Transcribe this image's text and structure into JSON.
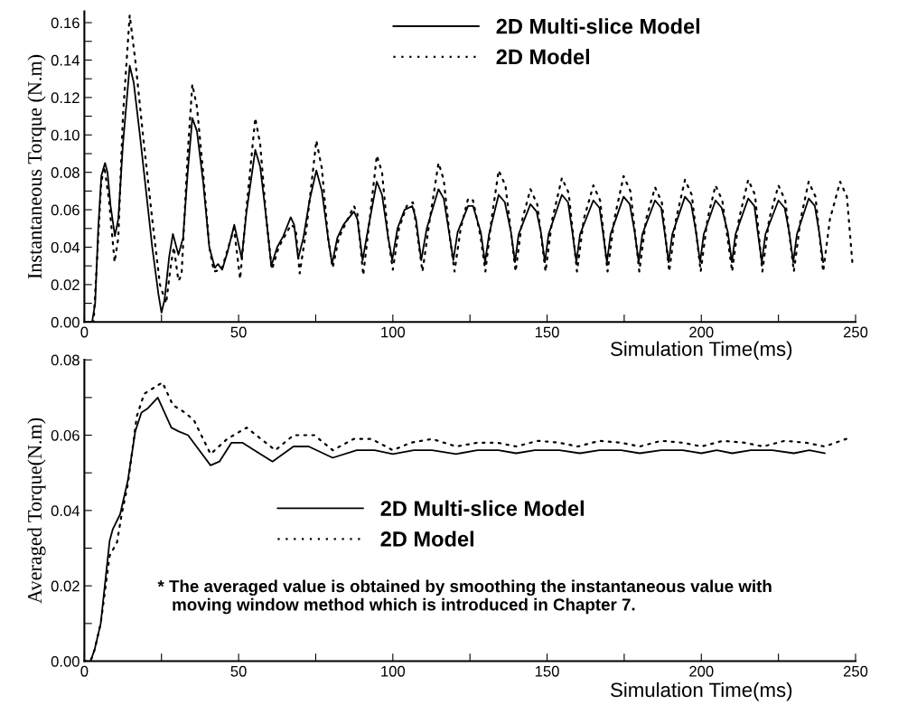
{
  "chart_data": [
    {
      "type": "line",
      "ylabel": "Instantaneous Torque (N.m)",
      "xlabel": "Simulation Time(ms)",
      "xlim": [
        0,
        250
      ],
      "ylim": [
        0,
        0.166
      ],
      "xticks": [
        0,
        {
          "value": 25,
          "label": null
        },
        50,
        {
          "value": 75,
          "label": null
        },
        100,
        {
          "value": 125,
          "label": null
        },
        150,
        {
          "value": 175,
          "label": null
        },
        200,
        {
          "value": 225,
          "label": null
        },
        250
      ],
      "yticks": [
        {
          "value": 0,
          "label": "0.00"
        },
        {
          "value": 0.01,
          "label": null
        },
        {
          "value": 0.02,
          "label": "0.02"
        },
        {
          "value": 0.03,
          "label": null
        },
        {
          "value": 0.04,
          "label": "0.04"
        },
        {
          "value": 0.05,
          "label": null
        },
        {
          "value": 0.06,
          "label": "0.06"
        },
        {
          "value": 0.07,
          "label": null
        },
        {
          "value": 0.08,
          "label": "0.08"
        },
        {
          "value": 0.09,
          "label": null
        },
        {
          "value": 0.1,
          "label": "0.10"
        },
        {
          "value": 0.11,
          "label": null
        },
        {
          "value": 0.12,
          "label": "0.12"
        },
        {
          "value": 0.13,
          "label": null
        },
        {
          "value": 0.14,
          "label": "0.14"
        },
        {
          "value": 0.15,
          "label": null
        },
        {
          "value": 0.16,
          "label": "0.16"
        }
      ],
      "legend": "top",
      "series": [
        {
          "name": "2D Multi-slice Model",
          "color": "#000000",
          "line_style": "solid",
          "x": [
            0,
            2.5,
            3.5,
            4.5,
            5.5,
            6.7,
            7.5,
            8.5,
            9.9,
            11,
            12.5,
            14.7,
            16,
            18,
            20,
            22,
            24,
            25,
            26,
            27.5,
            28.7,
            30.5,
            32,
            33.5,
            35,
            36.5,
            38.5,
            40.5,
            42.3,
            43.3,
            44.7,
            46.5,
            48.6,
            51,
            52.5,
            55.4,
            57,
            59,
            60.6,
            62.5,
            64.5,
            66.9,
            68,
            69.3,
            71,
            73,
            75.2,
            77,
            79,
            80.3,
            82,
            84,
            87.4,
            88.5,
            90.2,
            92,
            94.8,
            96.5,
            98.5,
            99.8,
            101.5,
            103.8,
            106.3,
            107.5,
            109.2,
            111,
            114.8,
            116.5,
            118.5,
            119.6,
            121,
            124.4,
            126,
            128.5,
            129.9,
            131.2,
            134.3,
            136.3,
            138.3,
            139.6,
            140.8,
            144.6,
            146.6,
            148,
            149.3,
            150.5,
            154.8,
            156.8,
            158.2,
            159.5,
            160.7,
            165,
            167,
            168.1,
            169.4,
            170.6,
            174.8,
            176.8,
            178.4,
            179.7,
            180.9,
            185,
            187,
            188.1,
            189.4,
            190.6,
            194.7,
            196.7,
            198.3,
            199.6,
            200.8,
            204.6,
            206.6,
            208.6,
            209.9,
            211.1,
            215.2,
            217.2,
            218.3,
            219.6,
            220.8,
            225,
            227,
            228.5,
            229.8,
            231,
            234.8,
            236.8,
            238.2,
            239.5
          ],
          "values": [
            0,
            0,
            0.01,
            0.05,
            0.078,
            0.085,
            0.08,
            0.062,
            0.046,
            0.055,
            0.095,
            0.137,
            0.128,
            0.1,
            0.07,
            0.04,
            0.015,
            0.005,
            0.012,
            0.035,
            0.047,
            0.036,
            0.045,
            0.08,
            0.109,
            0.102,
            0.075,
            0.04,
            0.029,
            0.031,
            0.028,
            0.038,
            0.052,
            0.034,
            0.058,
            0.092,
            0.083,
            0.055,
            0.03,
            0.04,
            0.046,
            0.056,
            0.052,
            0.034,
            0.045,
            0.065,
            0.081,
            0.07,
            0.045,
            0.031,
            0.045,
            0.052,
            0.059,
            0.055,
            0.033,
            0.05,
            0.075,
            0.068,
            0.045,
            0.033,
            0.05,
            0.06,
            0.062,
            0.055,
            0.033,
            0.05,
            0.071,
            0.066,
            0.045,
            0.033,
            0.048,
            0.062,
            0.062,
            0.048,
            0.032,
            0.047,
            0.068,
            0.064,
            0.048,
            0.032,
            0.047,
            0.063,
            0.059,
            0.048,
            0.032,
            0.047,
            0.068,
            0.064,
            0.048,
            0.032,
            0.047,
            0.065,
            0.061,
            0.048,
            0.032,
            0.047,
            0.067,
            0.063,
            0.048,
            0.032,
            0.047,
            0.065,
            0.061,
            0.048,
            0.032,
            0.047,
            0.067,
            0.063,
            0.048,
            0.032,
            0.047,
            0.065,
            0.061,
            0.048,
            0.032,
            0.047,
            0.066,
            0.062,
            0.048,
            0.032,
            0.047,
            0.065,
            0.061,
            0.048,
            0.032,
            0.047,
            0.066,
            0.062,
            0.048,
            0.032
          ]
        },
        {
          "name": "2D Model",
          "color": "#000000",
          "line_style": "dotted",
          "x": [
            0,
            3,
            4,
            5.5,
            6.5,
            8,
            9.8,
            11,
            12.5,
            14.7,
            16.5,
            19,
            22,
            24.5,
            26.5,
            28,
            29,
            30.5,
            31.5,
            33.5,
            35,
            36.5,
            38.5,
            40.5,
            42,
            44.5,
            48.5,
            50.5,
            52.5,
            55.4,
            57,
            59,
            60.8,
            63,
            67,
            68.5,
            69.8,
            72,
            75.2,
            77,
            79,
            80.5,
            82.5,
            87.4,
            88.5,
            90.4,
            92.5,
            94.8,
            96.5,
            98.5,
            100,
            102,
            104.5,
            106.5,
            109.6,
            112,
            114.8,
            116.5,
            118.5,
            120,
            122,
            124.4,
            126,
            128.5,
            130,
            132,
            134.3,
            136.5,
            139.8,
            142,
            144.6,
            146.8,
            149.5,
            151.7,
            154.8,
            157,
            159.7,
            161.9,
            165,
            167.2,
            169.6,
            171.8,
            174.8,
            177,
            179.9,
            182.1,
            185,
            187.2,
            189.6,
            191.8,
            194.7,
            196.9,
            199.8,
            202,
            204.6,
            206.8,
            210,
            212.2,
            215.2,
            217.4,
            219.8,
            222,
            225,
            227.2,
            230,
            232.2,
            234.8,
            237,
            239.5,
            241.7,
            245,
            247.2,
            249
          ],
          "values": [
            0,
            0,
            0.03,
            0.075,
            0.083,
            0.065,
            0.032,
            0.045,
            0.11,
            0.164,
            0.14,
            0.1,
            0.055,
            0.02,
            0.01,
            0.03,
            0.04,
            0.022,
            0.025,
            0.09,
            0.127,
            0.115,
            0.08,
            0.04,
            0.027,
            0.028,
            0.05,
            0.023,
            0.06,
            0.109,
            0.095,
            0.055,
            0.028,
            0.04,
            0.052,
            0.05,
            0.026,
            0.05,
            0.097,
            0.082,
            0.045,
            0.029,
            0.045,
            0.062,
            0.058,
            0.025,
            0.055,
            0.089,
            0.08,
            0.045,
            0.028,
            0.05,
            0.062,
            0.064,
            0.027,
            0.055,
            0.085,
            0.076,
            0.045,
            0.027,
            0.05,
            0.066,
            0.065,
            0.045,
            0.027,
            0.055,
            0.081,
            0.073,
            0.027,
            0.055,
            0.071,
            0.063,
            0.027,
            0.055,
            0.077,
            0.069,
            0.027,
            0.055,
            0.073,
            0.065,
            0.027,
            0.055,
            0.078,
            0.07,
            0.027,
            0.055,
            0.072,
            0.064,
            0.027,
            0.055,
            0.076,
            0.068,
            0.027,
            0.055,
            0.073,
            0.065,
            0.027,
            0.055,
            0.076,
            0.068,
            0.027,
            0.055,
            0.073,
            0.065,
            0.027,
            0.055,
            0.075,
            0.067,
            0.027,
            0.055,
            0.075,
            0.067,
            0.031
          ]
        }
      ]
    },
    {
      "type": "line",
      "ylabel": "Averaged Torque(N.m)",
      "xlabel": "Simulation Time(ms)",
      "xlim": [
        0,
        250
      ],
      "ylim": [
        0,
        0.08
      ],
      "xticks": [
        0,
        {
          "value": 25,
          "label": null
        },
        50,
        {
          "value": 75,
          "label": null
        },
        100,
        {
          "value": 125,
          "label": null
        },
        150,
        {
          "value": 175,
          "label": null
        },
        200,
        {
          "value": 225,
          "label": null
        },
        250
      ],
      "yticks": [
        {
          "value": 0,
          "label": "0.00"
        },
        {
          "value": 0.01,
          "label": null
        },
        {
          "value": 0.02,
          "label": "0.02"
        },
        {
          "value": 0.03,
          "label": null
        },
        {
          "value": 0.04,
          "label": "0.04"
        },
        {
          "value": 0.05,
          "label": null
        },
        {
          "value": 0.06,
          "label": "0.06"
        },
        {
          "value": 0.07,
          "label": null
        },
        {
          "value": 0.08,
          "label": "0.08"
        }
      ],
      "legend": "center",
      "annotations": [
        "* The averaged value is obtained by smoothing the instantaneous value with\n   moving window method which is introduced in Chapter 7."
      ],
      "series": [
        {
          "name": "2D Multi-slice Model",
          "color": "#000000",
          "line_style": "solid",
          "x": [
            0,
            2,
            3.3,
            5.3,
            8.2,
            9.2,
            11.6,
            14.1,
            16.5,
            18.5,
            20.4,
            23.8,
            28.2,
            30.6,
            33.6,
            40.9,
            43.8,
            47.7,
            51.2,
            57,
            61,
            67.8,
            72.7,
            80.5,
            88.3,
            94.1,
            100,
            106.8,
            112.7,
            120.5,
            127.4,
            134.2,
            140,
            146,
            154,
            160.6,
            167,
            174,
            180,
            187,
            194,
            200,
            205,
            210,
            216,
            223,
            230,
            235,
            240
          ],
          "values": [
            0,
            0,
            0.003,
            0.01,
            0.032,
            0.035,
            0.039,
            0.048,
            0.061,
            0.066,
            0.067,
            0.07,
            0.062,
            0.061,
            0.06,
            0.052,
            0.053,
            0.058,
            0.058,
            0.055,
            0.053,
            0.057,
            0.057,
            0.054,
            0.056,
            0.056,
            0.055,
            0.056,
            0.056,
            0.055,
            0.056,
            0.056,
            0.0552,
            0.056,
            0.056,
            0.0552,
            0.056,
            0.056,
            0.0552,
            0.056,
            0.056,
            0.0552,
            0.056,
            0.0552,
            0.056,
            0.056,
            0.0552,
            0.056,
            0.0552
          ]
        },
        {
          "name": "2D Model",
          "color": "#000000",
          "line_style": "dotted",
          "x": [
            0,
            2,
            3.3,
            5.3,
            8.2,
            10.6,
            12.1,
            14.1,
            17,
            19.4,
            25.3,
            28.7,
            32.6,
            35.5,
            40.9,
            46.3,
            52.6,
            61.9,
            67.8,
            74.6,
            80.5,
            87.3,
            93.1,
            100,
            105.8,
            112.7,
            120.5,
            127.4,
            134,
            140,
            147,
            154,
            160,
            167,
            174,
            180,
            187,
            194,
            200,
            207,
            214,
            220,
            227,
            234,
            240,
            247
          ],
          "values": [
            0,
            0,
            0.003,
            0.01,
            0.028,
            0.0316,
            0.039,
            0.047,
            0.065,
            0.071,
            0.074,
            0.068,
            0.066,
            0.064,
            0.055,
            0.059,
            0.062,
            0.056,
            0.06,
            0.06,
            0.056,
            0.059,
            0.059,
            0.056,
            0.058,
            0.059,
            0.057,
            0.058,
            0.058,
            0.057,
            0.0585,
            0.058,
            0.057,
            0.0585,
            0.058,
            0.057,
            0.0585,
            0.058,
            0.057,
            0.0585,
            0.058,
            0.057,
            0.0585,
            0.058,
            0.057,
            0.059
          ]
        }
      ]
    }
  ]
}
